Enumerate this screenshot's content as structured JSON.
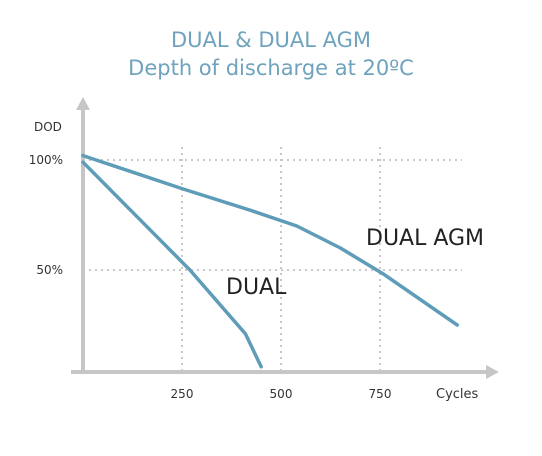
{
  "chart_data": {
    "type": "line",
    "title": "DUAL & DUAL AGM",
    "subtitle": "Depth of discharge at 20ºC",
    "ylabel": "DOD",
    "xlabel": "Cycles",
    "x_ticks": [
      250,
      500,
      750
    ],
    "x_tick_labels": [
      "250",
      "500",
      "750"
    ],
    "y_ticks": [
      50,
      100
    ],
    "y_tick_labels": [
      "50%",
      "100%"
    ],
    "xlim": [
      0,
      1000
    ],
    "ylim": [
      0,
      120
    ],
    "grid": true,
    "series": [
      {
        "name": "DUAL AGM",
        "color": "#5e9cb8",
        "points": [
          [
            0,
            102
          ],
          [
            250,
            87
          ],
          [
            425,
            77
          ],
          [
            540,
            70
          ],
          [
            650,
            60
          ],
          [
            760,
            48
          ],
          [
            945,
            25
          ]
        ]
      },
      {
        "name": "DUAL",
        "color": "#5e9cb8",
        "points": [
          [
            0,
            99
          ],
          [
            270,
            50
          ],
          [
            410,
            21
          ],
          [
            450,
            6
          ]
        ]
      }
    ]
  }
}
